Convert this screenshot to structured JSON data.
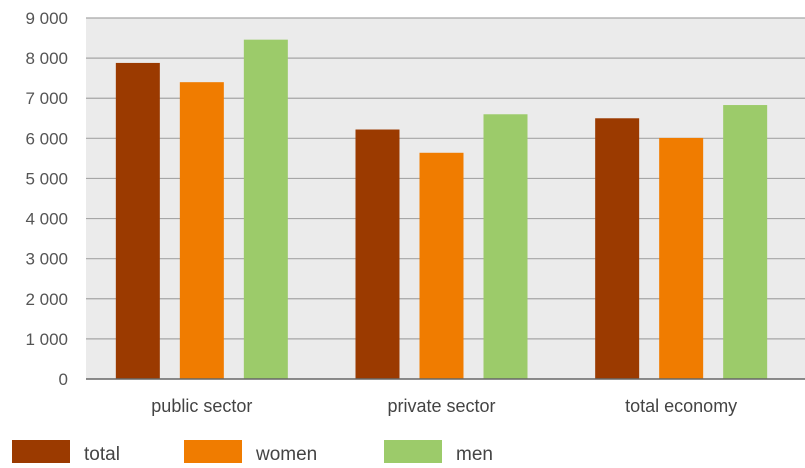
{
  "chart_data": {
    "type": "bar",
    "title": "",
    "xlabel": "",
    "ylabel": "",
    "categories": [
      "public sector",
      "private sector",
      "total economy"
    ],
    "series": [
      {
        "name": "total",
        "color": "#9b3a00",
        "values": [
          7880,
          6220,
          6500
        ]
      },
      {
        "name": "women",
        "color": "#f07c00",
        "values": [
          7400,
          5640,
          6010
        ]
      },
      {
        "name": "men",
        "color": "#9ccb6a",
        "values": [
          8460,
          6600,
          6830
        ]
      }
    ],
    "ylim": [
      0,
      9000
    ],
    "yticks": [
      0,
      1000,
      2000,
      3000,
      4000,
      5000,
      6000,
      7000,
      8000,
      9000
    ],
    "ytick_labels": [
      "0",
      "1 000",
      "2 000",
      "3 000",
      "4 000",
      "5 000",
      "6 000",
      "7 000",
      "8 000",
      "9 000"
    ],
    "grid": true,
    "plot_background": "#ebebeb",
    "legend_position": "bottom"
  }
}
